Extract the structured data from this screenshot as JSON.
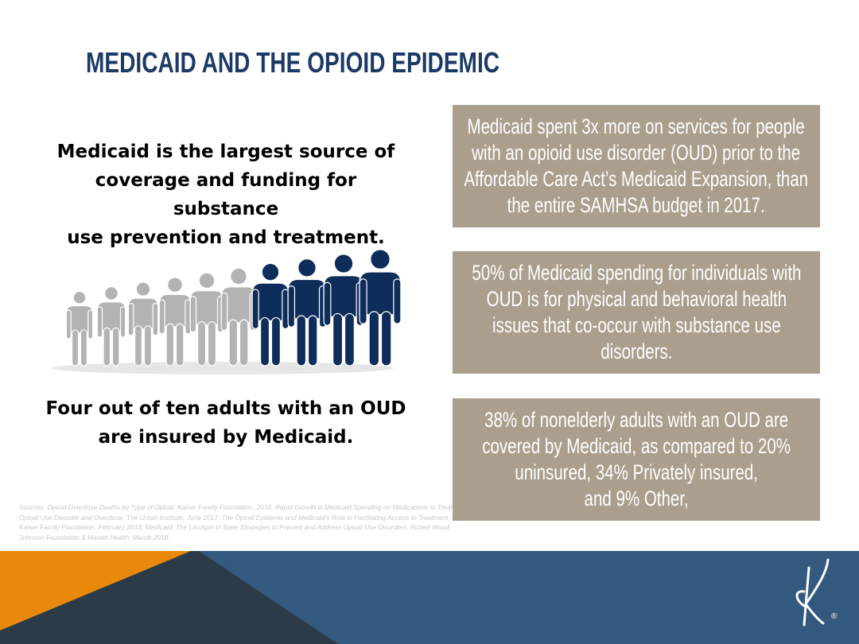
{
  "title": "MEDICAID AND THE OPIOID EPIDEMIC",
  "left": {
    "lead_top": [
      "Medicaid is the largest source of",
      "coverage and funding for substance",
      "use prevention and treatment."
    ],
    "lead_bottom": [
      "Four out of ten adults with an OUD",
      "are insured by Medicaid."
    ],
    "people_total": 10,
    "people_highlighted": 4
  },
  "boxes": [
    {
      "lines": [
        "Medicaid spent 3x more on services for people",
        "with an opioid use disorder (OUD)  prior to the",
        "Affordable Care Act’s Medicaid Expansion, than",
        "the entire SAMHSA budget in 2017."
      ]
    },
    {
      "lines": [
        "50% of Medicaid spending for individuals with",
        "OUD is for physical and behavioral health",
        "issues that co-occur with substance use",
        "disorders."
      ]
    },
    {
      "lines": [
        "38% of nonelderly adults with an OUD are",
        "covered by Medicaid, as compared to 20%",
        "uninsured, 34% Privately insured,",
        "and 9% Other,"
      ]
    }
  ],
  "sources": "Sources: Opioid Overdose Deaths by Type of Opioid, Kaiser Family Foundation, 2016; Rapid Growth in Medicaid Spending on Medications to Treat Opioid Use Disorder and Overdose, The Urban Institute, June 2017; The Opioid Epidemic and Medicaid’s Role in Facilitating Access to Treatment, Kaiser Family Foundation, February 2018; Medicaid: The Linchpin in State Strategies to Prevent and Address Opioid Use Disorders, Robert Wood Johnson Foundation & Manatt Health, March 2018.",
  "colors": {
    "title": "#1c3a66",
    "box_bg": "#aa9f8d",
    "person_gray": "#b3b3b3",
    "person_navy": "#0f2d5a",
    "footer_orange": "#e8890c",
    "footer_dark": "#2b3b48",
    "footer_blue": "#33597f"
  },
  "logo": {
    "icon": "k-monogram-logo",
    "mark": "®"
  }
}
